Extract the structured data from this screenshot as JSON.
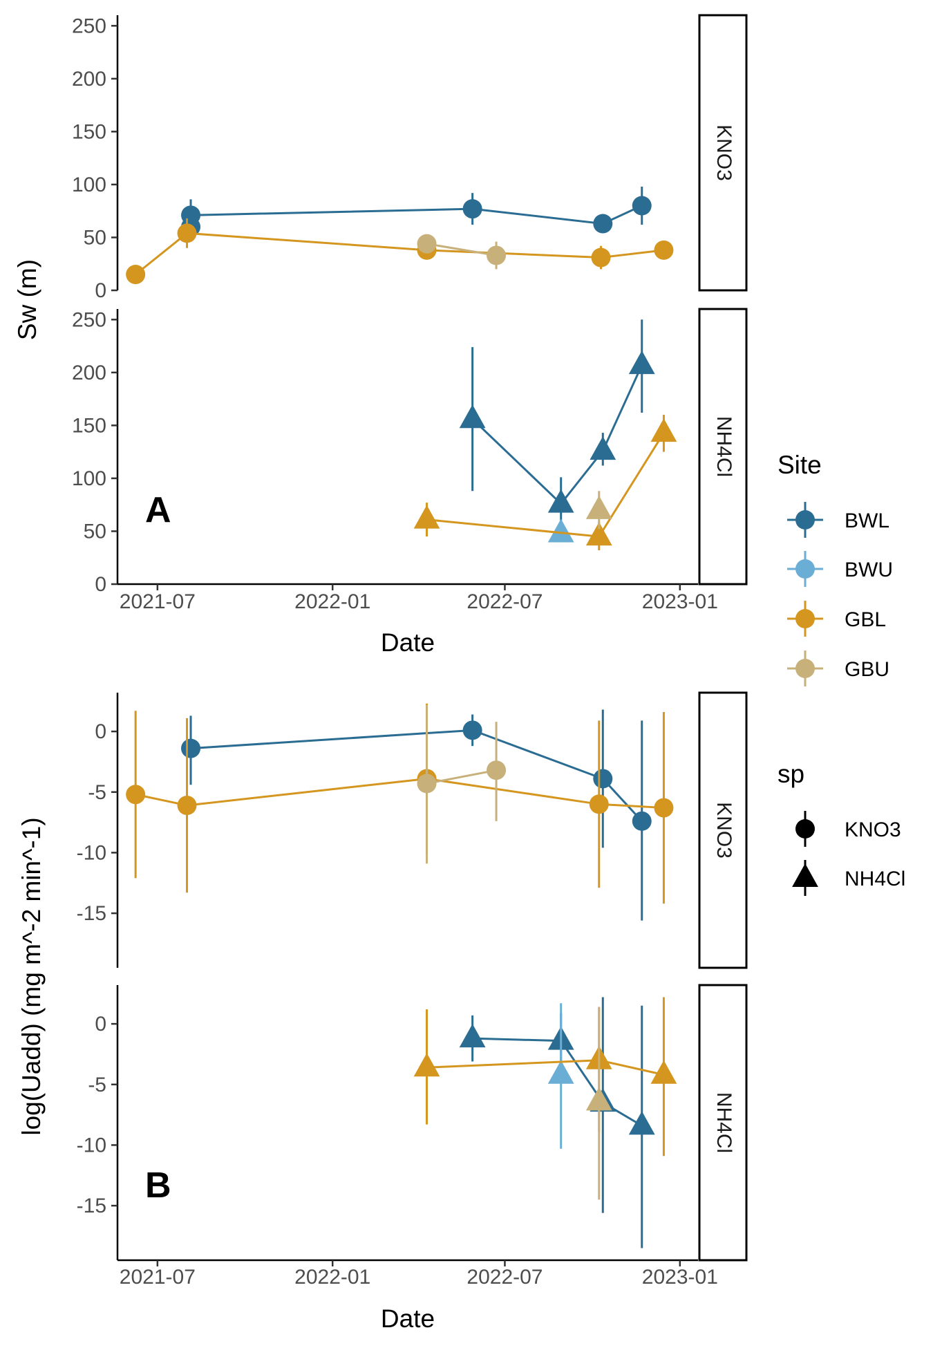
{
  "colors": {
    "BWL": "#2b6c93",
    "BWU": "#6aaed6",
    "GBL": "#d4961e",
    "GBU": "#c8b07a"
  },
  "x_axis": {
    "title": "Date",
    "ticks": [
      {
        "date": "2021-07-01",
        "label": "2021-07"
      },
      {
        "date": "2022-01-01",
        "label": "2022-01"
      },
      {
        "date": "2022-07-01",
        "label": "2022-07"
      },
      {
        "date": "2023-01-01",
        "label": "2023-01"
      }
    ],
    "range": [
      "2021-05-20",
      "2023-01-20"
    ]
  },
  "legend": {
    "site_title": "Site",
    "sites": [
      "BWL",
      "BWU",
      "GBL",
      "GBU"
    ],
    "sp_title": "sp",
    "sp": [
      {
        "label": "KNO3",
        "shape": "circle"
      },
      {
        "label": "NH4Cl",
        "shape": "triangle"
      }
    ]
  },
  "chart_data": [
    {
      "type": "scatter",
      "panel_letter": "A",
      "ylabel": "Sw (m)",
      "xlabel": "Date",
      "ylim": [
        0,
        260
      ],
      "yticks": [
        0,
        50,
        100,
        150,
        200,
        250
      ],
      "facets": [
        {
          "strip": "KNO3",
          "shape": "circle",
          "series": [
            {
              "site": "BWL",
              "points": [
                {
                  "x": "2021-08-05",
                  "y": 60,
                  "lo": 52,
                  "hi": 68
                },
                {
                  "x": "2021-08-05",
                  "y": 71,
                  "lo": 58,
                  "hi": 86
                },
                {
                  "x": "2022-05-28",
                  "y": 77,
                  "lo": 62,
                  "hi": 92
                },
                {
                  "x": "2022-10-12",
                  "y": 63,
                  "lo": 57,
                  "hi": 69
                },
                {
                  "x": "2022-11-22",
                  "y": 80,
                  "lo": 62,
                  "hi": 98
                }
              ]
            },
            {
              "site": "GBL",
              "points": [
                {
                  "x": "2021-06-08",
                  "y": 15,
                  "lo": 10,
                  "hi": 20
                },
                {
                  "x": "2021-08-01",
                  "y": 54,
                  "lo": 40,
                  "hi": 68
                },
                {
                  "x": "2022-04-10",
                  "y": 38,
                  "lo": 33,
                  "hi": 43
                },
                {
                  "x": "2022-10-10",
                  "y": 31,
                  "lo": 20,
                  "hi": 42
                },
                {
                  "x": "2022-12-15",
                  "y": 38,
                  "lo": 33,
                  "hi": 43
                }
              ]
            },
            {
              "site": "GBU",
              "points": [
                {
                  "x": "2022-04-10",
                  "y": 44,
                  "lo": 39,
                  "hi": 49
                },
                {
                  "x": "2022-06-22",
                  "y": 33,
                  "lo": 20,
                  "hi": 46
                }
              ]
            }
          ]
        },
        {
          "strip": "NH4Cl",
          "shape": "triangle",
          "series": [
            {
              "site": "BWL",
              "points": [
                {
                  "x": "2022-05-28",
                  "y": 156,
                  "lo": 88,
                  "hi": 224
                },
                {
                  "x": "2022-08-29",
                  "y": 76,
                  "lo": 55,
                  "hi": 101
                },
                {
                  "x": "2022-10-12",
                  "y": 126,
                  "lo": 112,
                  "hi": 143
                },
                {
                  "x": "2022-11-22",
                  "y": 207,
                  "lo": 162,
                  "hi": 250
                }
              ]
            },
            {
              "site": "BWU",
              "points": [
                {
                  "x": "2022-08-29",
                  "y": 48,
                  "lo": 43,
                  "hi": 53
                }
              ]
            },
            {
              "site": "GBL",
              "points": [
                {
                  "x": "2022-04-10",
                  "y": 61,
                  "lo": 45,
                  "hi": 77
                },
                {
                  "x": "2022-10-08",
                  "y": 45,
                  "lo": 32,
                  "hi": 59
                },
                {
                  "x": "2022-12-15",
                  "y": 143,
                  "lo": 125,
                  "hi": 160
                }
              ]
            },
            {
              "site": "GBU",
              "points": [
                {
                  "x": "2022-10-08",
                  "y": 70,
                  "lo": 52,
                  "hi": 88
                }
              ]
            }
          ]
        }
      ]
    },
    {
      "type": "scatter",
      "panel_letter": "B",
      "ylabel": "log(Uadd) (mg m^-2 min^-1)",
      "xlabel": "Date",
      "ylim": [
        -19.5,
        3.2
      ],
      "yticks": [
        0,
        -5,
        -10,
        -15
      ],
      "facets": [
        {
          "strip": "KNO3",
          "shape": "circle",
          "series": [
            {
              "site": "BWL",
              "points": [
                {
                  "x": "2021-08-05",
                  "y": -1.4,
                  "lo": -4.4,
                  "hi": 1.3
                },
                {
                  "x": "2022-05-28",
                  "y": 0.1,
                  "lo": -1.2,
                  "hi": 1.4
                },
                {
                  "x": "2022-10-12",
                  "y": -3.9,
                  "lo": -9.6,
                  "hi": 1.8
                },
                {
                  "x": "2022-11-22",
                  "y": -7.4,
                  "lo": -15.6,
                  "hi": 0.9
                }
              ]
            },
            {
              "site": "GBL",
              "points": [
                {
                  "x": "2021-06-08",
                  "y": -5.2,
                  "lo": -12.1,
                  "hi": 1.7
                },
                {
                  "x": "2021-08-01",
                  "y": -6.1,
                  "lo": -13.3,
                  "hi": 1.1
                },
                {
                  "x": "2022-04-10",
                  "y": -3.9,
                  "lo": -10.2,
                  "hi": 2.3
                },
                {
                  "x": "2022-10-08",
                  "y": -6.0,
                  "lo": -12.9,
                  "hi": 0.9
                },
                {
                  "x": "2022-12-15",
                  "y": -6.3,
                  "lo": -14.2,
                  "hi": 1.6
                }
              ]
            },
            {
              "site": "GBU",
              "points": [
                {
                  "x": "2022-04-10",
                  "y": -4.3,
                  "lo": -10.9,
                  "hi": 2.2
                },
                {
                  "x": "2022-06-22",
                  "y": -3.2,
                  "lo": -7.4,
                  "hi": 0.8
                }
              ]
            }
          ]
        },
        {
          "strip": "NH4Cl",
          "shape": "triangle",
          "series": [
            {
              "site": "BWL",
              "points": [
                {
                  "x": "2022-05-28",
                  "y": -1.2,
                  "lo": -3.1,
                  "hi": 0.7
                },
                {
                  "x": "2022-08-29",
                  "y": -1.4,
                  "lo": -3.6,
                  "hi": 0.9
                },
                {
                  "x": "2022-10-12",
                  "y": -6.5,
                  "lo": -15.6,
                  "hi": 2.2
                },
                {
                  "x": "2022-11-22",
                  "y": -8.4,
                  "lo": -18.5,
                  "hi": 1.5
                }
              ]
            },
            {
              "site": "BWU",
              "points": [
                {
                  "x": "2022-08-29",
                  "y": -4.2,
                  "lo": -10.3,
                  "hi": 1.7
                }
              ]
            },
            {
              "site": "GBL",
              "points": [
                {
                  "x": "2022-04-10",
                  "y": -3.6,
                  "lo": -8.3,
                  "hi": 1.2
                },
                {
                  "x": "2022-10-08",
                  "y": -3.0,
                  "lo": -8.9,
                  "hi": 1.3
                },
                {
                  "x": "2022-12-15",
                  "y": -4.2,
                  "lo": -10.9,
                  "hi": 2.2
                }
              ]
            },
            {
              "site": "GBU",
              "points": [
                {
                  "x": "2022-10-08",
                  "y": -6.4,
                  "lo": -14.5,
                  "hi": 1.4
                }
              ]
            }
          ]
        }
      ]
    }
  ]
}
